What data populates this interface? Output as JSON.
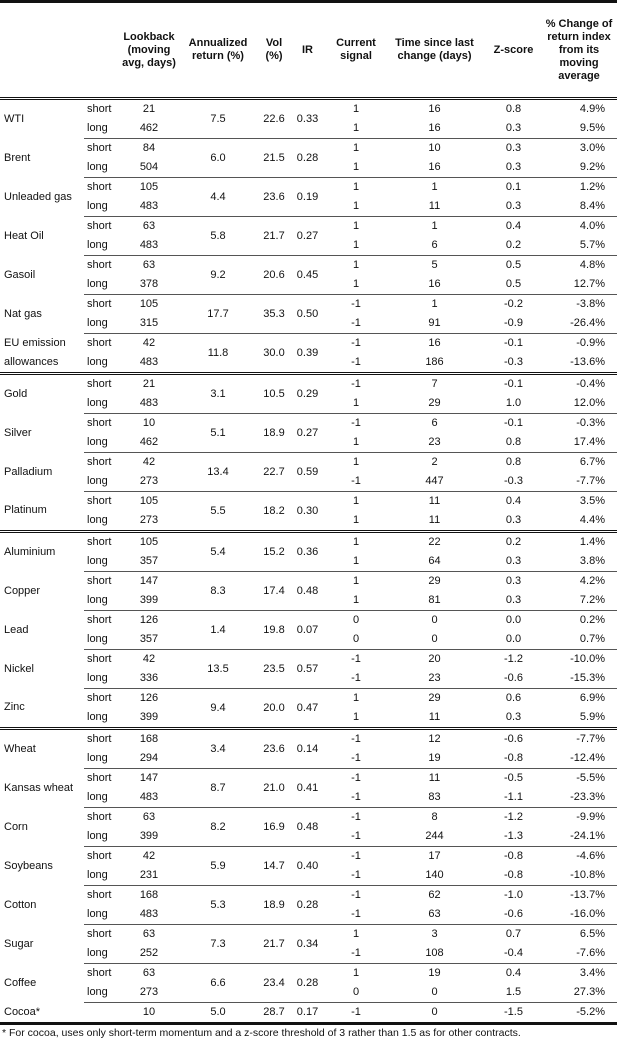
{
  "headers": [
    "",
    "",
    "Lookback (moving avg, days)",
    "Annualized return (%)",
    "Vol (%)",
    "IR",
    "Current signal",
    "Time since last change (days)",
    "Z-score",
    "% Change of return index from its moving average"
  ],
  "groups": [
    [
      {
        "name": "WTI",
        "ret": "7.5",
        "vol": "22.6",
        "ir": "0.33",
        "rows": [
          [
            "short",
            "21",
            "1",
            "16",
            "0.8",
            "4.9%"
          ],
          [
            "long",
            "462",
            "1",
            "16",
            "0.3",
            "9.5%"
          ]
        ]
      },
      {
        "name": "Brent",
        "ret": "6.0",
        "vol": "21.5",
        "ir": "0.28",
        "rows": [
          [
            "short",
            "84",
            "1",
            "10",
            "0.3",
            "3.0%"
          ],
          [
            "long",
            "504",
            "1",
            "16",
            "0.3",
            "9.2%"
          ]
        ]
      },
      {
        "name": "Unleaded gas",
        "ret": "4.4",
        "vol": "23.6",
        "ir": "0.19",
        "rows": [
          [
            "short",
            "105",
            "1",
            "1",
            "0.1",
            "1.2%"
          ],
          [
            "long",
            "483",
            "1",
            "11",
            "0.3",
            "8.4%"
          ]
        ]
      },
      {
        "name": "Heat Oil",
        "ret": "5.8",
        "vol": "21.7",
        "ir": "0.27",
        "rows": [
          [
            "short",
            "63",
            "1",
            "1",
            "0.4",
            "4.0%"
          ],
          [
            "long",
            "483",
            "1",
            "6",
            "0.2",
            "5.7%"
          ]
        ]
      },
      {
        "name": "Gasoil",
        "ret": "9.2",
        "vol": "20.6",
        "ir": "0.45",
        "rows": [
          [
            "short",
            "63",
            "1",
            "5",
            "0.5",
            "4.8%"
          ],
          [
            "long",
            "378",
            "1",
            "16",
            "0.5",
            "12.7%"
          ]
        ]
      },
      {
        "name": "Nat gas",
        "ret": "17.7",
        "vol": "35.3",
        "ir": "0.50",
        "rows": [
          [
            "short",
            "105",
            "-1",
            "1",
            "-0.2",
            "-3.8%"
          ],
          [
            "long",
            "315",
            "-1",
            "91",
            "-0.9",
            "-26.4%"
          ]
        ]
      },
      {
        "name": "EU emission allowances",
        "ret": "11.8",
        "vol": "30.0",
        "ir": "0.39",
        "rows": [
          [
            "short",
            "42",
            "-1",
            "16",
            "-0.1",
            "-0.9%"
          ],
          [
            "long",
            "483",
            "-1",
            "186",
            "-0.3",
            "-13.6%"
          ]
        ]
      }
    ],
    [
      {
        "name": "Gold",
        "ret": "3.1",
        "vol": "10.5",
        "ir": "0.29",
        "rows": [
          [
            "short",
            "21",
            "-1",
            "7",
            "-0.1",
            "-0.4%"
          ],
          [
            "long",
            "483",
            "1",
            "29",
            "1.0",
            "12.0%"
          ]
        ]
      },
      {
        "name": "Silver",
        "ret": "5.1",
        "vol": "18.9",
        "ir": "0.27",
        "rows": [
          [
            "short",
            "10",
            "-1",
            "6",
            "-0.1",
            "-0.3%"
          ],
          [
            "long",
            "462",
            "1",
            "23",
            "0.8",
            "17.4%"
          ]
        ]
      },
      {
        "name": "Palladium",
        "ret": "13.4",
        "vol": "22.7",
        "ir": "0.59",
        "rows": [
          [
            "short",
            "42",
            "1",
            "2",
            "0.8",
            "6.7%"
          ],
          [
            "long",
            "273",
            "-1",
            "447",
            "-0.3",
            "-7.7%"
          ]
        ]
      },
      {
        "name": "Platinum",
        "ret": "5.5",
        "vol": "18.2",
        "ir": "0.30",
        "rows": [
          [
            "short",
            "105",
            "1",
            "11",
            "0.4",
            "3.5%"
          ],
          [
            "long",
            "273",
            "1",
            "11",
            "0.3",
            "4.4%"
          ]
        ]
      }
    ],
    [
      {
        "name": "Aluminium",
        "ret": "5.4",
        "vol": "15.2",
        "ir": "0.36",
        "rows": [
          [
            "short",
            "105",
            "1",
            "22",
            "0.2",
            "1.4%"
          ],
          [
            "long",
            "357",
            "1",
            "64",
            "0.3",
            "3.8%"
          ]
        ]
      },
      {
        "name": "Copper",
        "ret": "8.3",
        "vol": "17.4",
        "ir": "0.48",
        "rows": [
          [
            "short",
            "147",
            "1",
            "29",
            "0.3",
            "4.2%"
          ],
          [
            "long",
            "399",
            "1",
            "81",
            "0.3",
            "7.2%"
          ]
        ]
      },
      {
        "name": "Lead",
        "ret": "1.4",
        "vol": "19.8",
        "ir": "0.07",
        "rows": [
          [
            "short",
            "126",
            "0",
            "0",
            "0.0",
            "0.2%"
          ],
          [
            "long",
            "357",
            "0",
            "0",
            "0.0",
            "0.7%"
          ]
        ]
      },
      {
        "name": "Nickel",
        "ret": "13.5",
        "vol": "23.5",
        "ir": "0.57",
        "rows": [
          [
            "short",
            "42",
            "-1",
            "20",
            "-1.2",
            "-10.0%"
          ],
          [
            "long",
            "336",
            "-1",
            "23",
            "-0.6",
            "-15.3%"
          ]
        ]
      },
      {
        "name": "Zinc",
        "ret": "9.4",
        "vol": "20.0",
        "ir": "0.47",
        "rows": [
          [
            "short",
            "126",
            "1",
            "29",
            "0.6",
            "6.9%"
          ],
          [
            "long",
            "399",
            "1",
            "11",
            "0.3",
            "5.9%"
          ]
        ]
      }
    ],
    [
      {
        "name": "Wheat",
        "ret": "3.4",
        "vol": "23.6",
        "ir": "0.14",
        "rows": [
          [
            "short",
            "168",
            "-1",
            "12",
            "-0.6",
            "-7.7%"
          ],
          [
            "long",
            "294",
            "-1",
            "19",
            "-0.8",
            "-12.4%"
          ]
        ]
      },
      {
        "name": "Kansas wheat",
        "ret": "8.7",
        "vol": "21.0",
        "ir": "0.41",
        "rows": [
          [
            "short",
            "147",
            "-1",
            "11",
            "-0.5",
            "-5.5%"
          ],
          [
            "long",
            "483",
            "-1",
            "83",
            "-1.1",
            "-23.3%"
          ]
        ]
      },
      {
        "name": "Corn",
        "ret": "8.2",
        "vol": "16.9",
        "ir": "0.48",
        "rows": [
          [
            "short",
            "63",
            "-1",
            "8",
            "-1.2",
            "-9.9%"
          ],
          [
            "long",
            "399",
            "-1",
            "244",
            "-1.3",
            "-24.1%"
          ]
        ]
      },
      {
        "name": "Soybeans",
        "ret": "5.9",
        "vol": "14.7",
        "ir": "0.40",
        "rows": [
          [
            "short",
            "42",
            "-1",
            "17",
            "-0.8",
            "-4.6%"
          ],
          [
            "long",
            "231",
            "-1",
            "140",
            "-0.8",
            "-10.8%"
          ]
        ]
      },
      {
        "name": "Cotton",
        "ret": "5.3",
        "vol": "18.9",
        "ir": "0.28",
        "rows": [
          [
            "short",
            "168",
            "-1",
            "62",
            "-1.0",
            "-13.7%"
          ],
          [
            "long",
            "483",
            "-1",
            "63",
            "-0.6",
            "-16.0%"
          ]
        ]
      },
      {
        "name": "Sugar",
        "ret": "7.3",
        "vol": "21.7",
        "ir": "0.34",
        "rows": [
          [
            "short",
            "63",
            "1",
            "3",
            "0.7",
            "6.5%"
          ],
          [
            "long",
            "252",
            "-1",
            "108",
            "-0.4",
            "-7.6%"
          ]
        ]
      },
      {
        "name": "Coffee",
        "ret": "6.6",
        "vol": "23.4",
        "ir": "0.28",
        "rows": [
          [
            "short",
            "63",
            "1",
            "19",
            "0.4",
            "3.4%"
          ],
          [
            "long",
            "273",
            "0",
            "0",
            "1.5",
            "27.3%"
          ]
        ]
      },
      {
        "name": "Cocoa*",
        "ret": "5.0",
        "vol": "28.7",
        "ir": "0.17",
        "rows": [
          [
            "",
            "10",
            "-1",
            "0",
            "-1.5",
            "-5.2%"
          ]
        ]
      }
    ]
  ],
  "footnote": "* For cocoa, uses only short-term momentum and a z-score threshold of 3 rather than 1.5 as for other contracts."
}
